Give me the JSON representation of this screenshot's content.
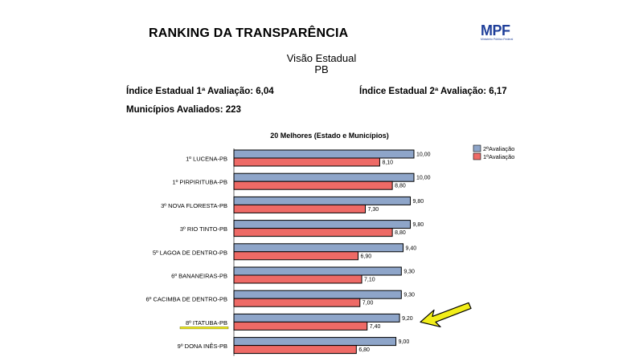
{
  "header": {
    "title": "RANKING DA TRANSPARÊNCIA",
    "logo_text": "MPF",
    "logo_subtitle": "Ministério Público Federal",
    "view_title": "Visão Estadual",
    "view_subtitle": "PB"
  },
  "stats": {
    "indice_1": "Índice Estadual 1ª Avaliação: 6,04",
    "indice_2": "Índice Estadual 2ª Avaliação: 6,17",
    "municipios": "Municípios Avaliados: 223"
  },
  "colors": {
    "series_2": "#8ea5c9",
    "series_1": "#ee6a66",
    "highlight_arrow": "#f2ee1a",
    "highlight_underline": "#f2ee1a"
  },
  "chart_data": {
    "type": "bar",
    "orientation": "horizontal",
    "title": "20 Melhores (Estado e Municípios)",
    "categories": [
      "1º LUCENA-PB",
      "1º PIRPIRITUBA-PB",
      "3º NOVA FLORESTA-PB",
      "3º RIO TINTO-PB",
      "5º LAGOA DE DENTRO-PB",
      "6º BANANEIRAS-PB",
      "6º CACIMBA DE DENTRO-PB",
      "8º ITATUBA-PB",
      "9º DONA INÊS-PB"
    ],
    "series": [
      {
        "name": "2ªAvaliação",
        "values": [
          10.0,
          10.0,
          9.8,
          9.8,
          9.4,
          9.3,
          9.3,
          9.2,
          9.0
        ],
        "labels": [
          "10,00",
          "10,00",
          "9,80",
          "9,80",
          "9,40",
          "9,30",
          "9,30",
          "9,20",
          "9,00"
        ]
      },
      {
        "name": "1ªAvaliação",
        "values": [
          8.1,
          8.8,
          7.3,
          8.8,
          6.9,
          7.1,
          7.0,
          7.4,
          6.8
        ],
        "labels": [
          "8,10",
          "8,80",
          "7,30",
          "8,80",
          "6,90",
          "7,10",
          "7,00",
          "7,40",
          "6,80"
        ]
      }
    ],
    "xlim": [
      0,
      10
    ],
    "grid": false,
    "legend_position": "top-right",
    "highlighted_category": "8º ITATUBA-PB"
  }
}
